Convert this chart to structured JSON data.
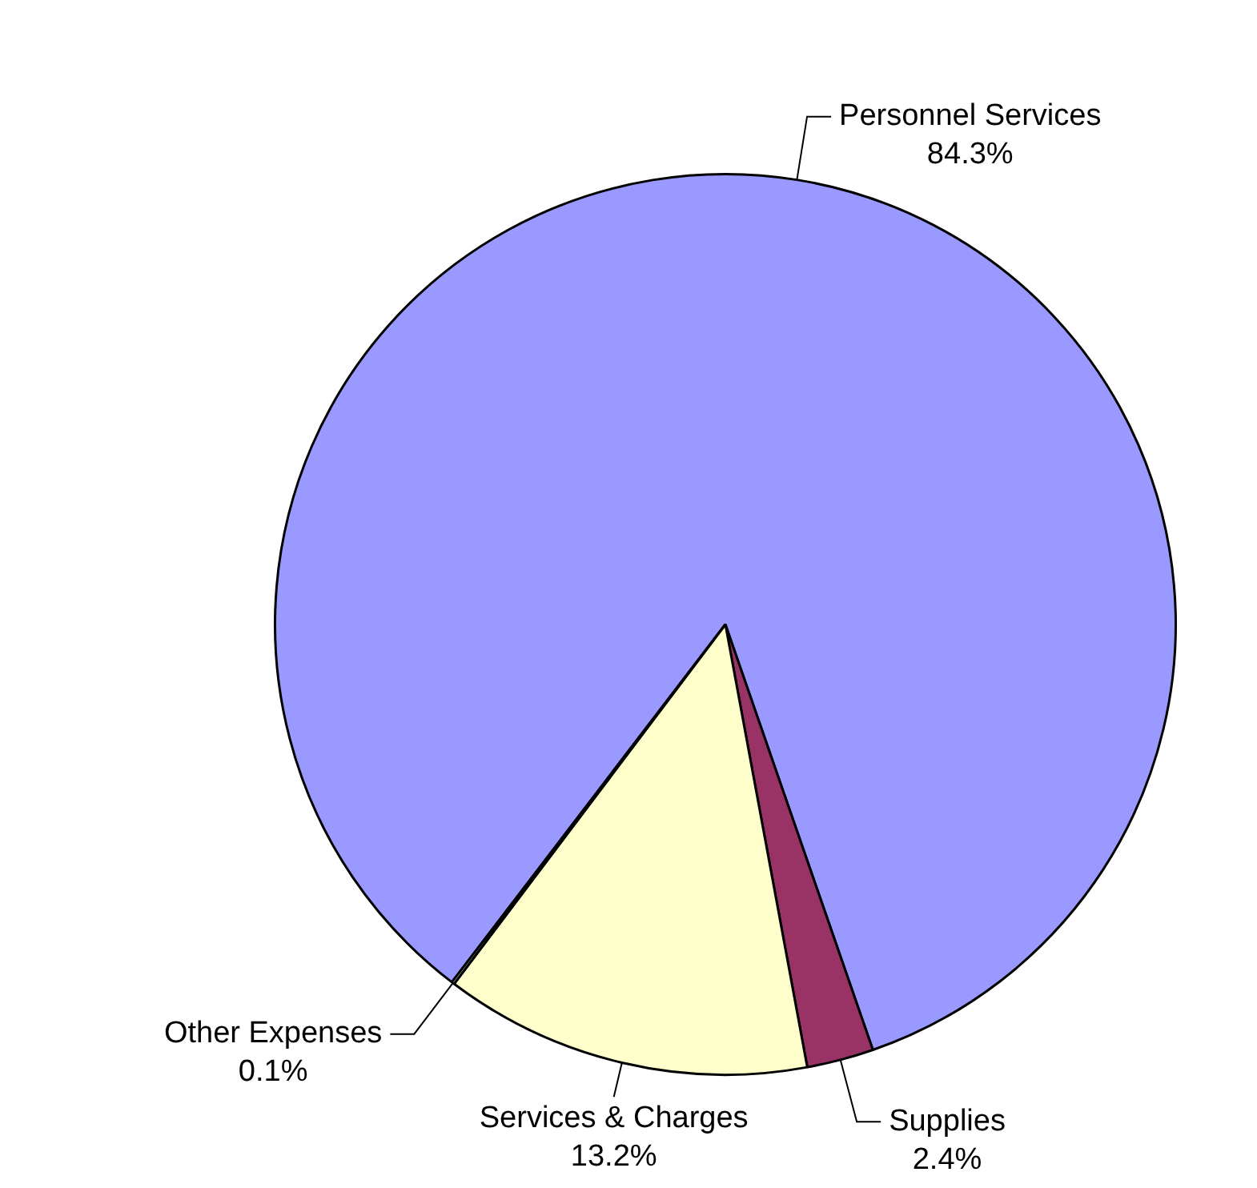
{
  "chart_data": {
    "type": "pie",
    "categories": [
      "Personnel Services",
      "Supplies",
      "Services & Charges",
      "Other Expenses"
    ],
    "values": [
      84.3,
      2.4,
      13.2,
      0.1
    ],
    "colors": [
      "#9999ff",
      "#993366",
      "#ffffcc",
      "#ccffff"
    ],
    "value_labels": [
      "84.3%",
      "2.4%",
      "13.2%",
      "0.1%"
    ],
    "legend": false
  }
}
